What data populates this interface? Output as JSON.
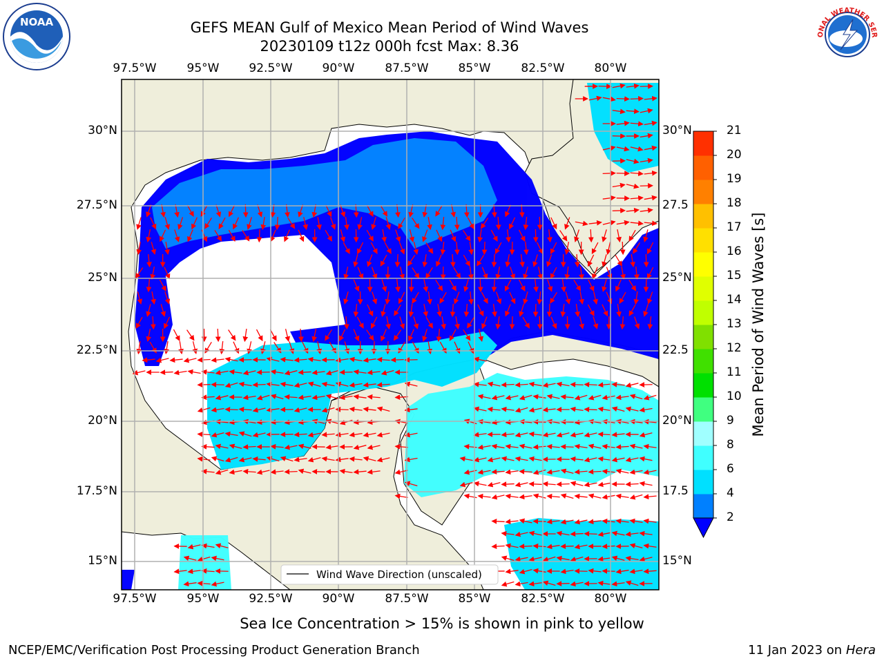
{
  "header": {
    "title_line1": "GEFS MEAN Gulf of Mexico Mean Period of Wind Waves",
    "title_line2": "20230109 t12z 000h fcst   Max: 8.36"
  },
  "logos": {
    "left": "NOAA",
    "right": "NATIONAL WEATHER SERVICE"
  },
  "map": {
    "lon_labels": [
      "97.5°W",
      "95°W",
      "92.5°W",
      "90°W",
      "87.5°W",
      "85°W",
      "82.5°W",
      "80°W"
    ],
    "lat_labels_left": [
      "30°N",
      "27.5°N",
      "25°N",
      "22.5°N",
      "20°N",
      "17.5°N",
      "15°N"
    ],
    "lat_labels_right": [
      "30°N",
      "27.5",
      "25°N",
      "22.5",
      "20°N",
      "17.5",
      "15°N"
    ],
    "legend_label": "Wind Wave Direction (unscaled)",
    "colors": {
      "land": "#efeedb",
      "water_none": "#ffffff",
      "arrow": "#ff0000"
    }
  },
  "colorbar": {
    "title": "Mean Period of Wind Waves [s]",
    "ticks": [
      "21",
      "20",
      "19",
      "18",
      "17",
      "16",
      "15",
      "14",
      "13",
      "12",
      "11",
      "10",
      "9",
      "8",
      "6",
      "4",
      "2"
    ],
    "levels": [
      2,
      4,
      6,
      8,
      9,
      10,
      11,
      12,
      13,
      14,
      15,
      16,
      17,
      18,
      19,
      20,
      21
    ],
    "colors": [
      "#0080ff",
      "#00e0ff",
      "#40ffff",
      "#a0ffff",
      "#40ff80",
      "#00e000",
      "#40e000",
      "#80e000",
      "#c0ff00",
      "#e0ff00",
      "#ffff00",
      "#ffe000",
      "#ffc000",
      "#ff8000",
      "#ff6000",
      "#ff3000",
      "#ff0000"
    ],
    "extend_color": "#0000ff"
  },
  "subtitle": "Sea Ice Concentration > 15% is shown in pink to yellow",
  "footer": {
    "left": "NCEP/EMC/Verification Post Processing Product Generation Branch",
    "right_prefix": "11 Jan 2023 on ",
    "right_host": "Hera"
  }
}
